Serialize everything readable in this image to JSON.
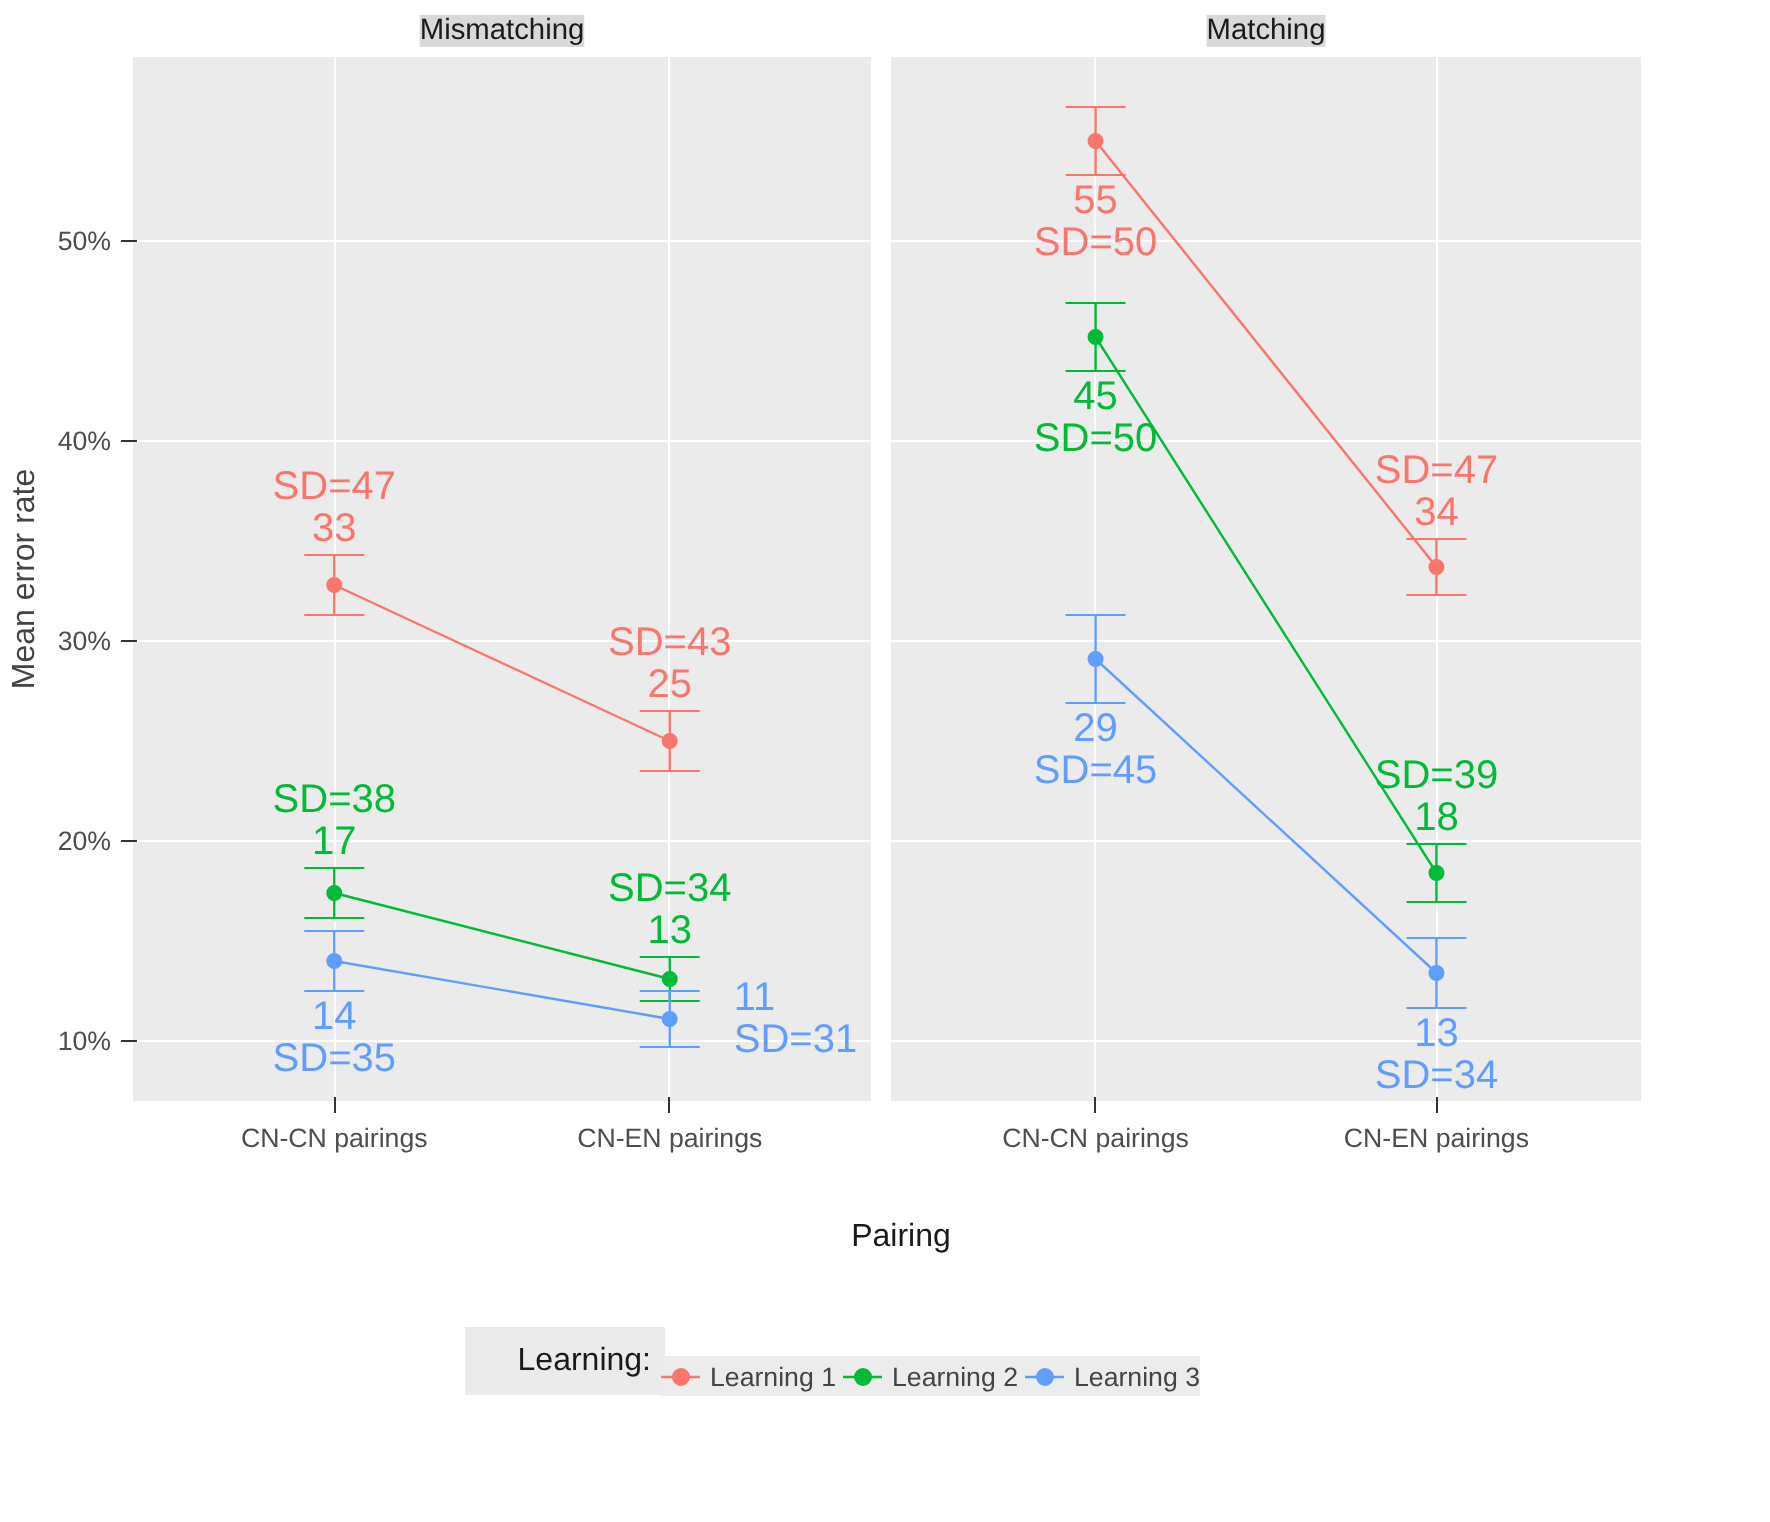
{
  "chart_data": [
    {
      "type": "line",
      "title": "Mismatching",
      "xlabel": "Pairing",
      "ylabel": "Mean error rate",
      "legend_title": "Learning:",
      "legend": "bottom",
      "marker": "circle",
      "grid": true,
      "categories": [
        "CN-CN pairings",
        "CN-EN pairings"
      ],
      "ylim": [
        7,
        59.2
      ],
      "yticks": [
        {
          "value": 10,
          "label": "10%"
        },
        {
          "value": 20,
          "label": "20%"
        },
        {
          "value": 30,
          "label": "30%"
        },
        {
          "value": 40,
          "label": "40%"
        },
        {
          "value": 50,
          "label": "50%"
        }
      ],
      "series": [
        {
          "name": "Learning 1",
          "color": "#f8766d",
          "values": [
            32.8,
            25.0
          ],
          "errors": [
            1.5,
            1.5
          ],
          "value_labels": [
            "SD=47\n33",
            "SD=43\n25"
          ]
        },
        {
          "name": "Learning 2",
          "color": "#00ba38",
          "values": [
            17.4,
            13.1
          ],
          "errors": [
            1.25,
            1.1
          ],
          "value_labels": [
            "SD=38\n17",
            "SD=34\n13"
          ]
        },
        {
          "name": "Learning 3",
          "color": "#619cff",
          "values": [
            14.0,
            11.1
          ],
          "errors": [
            1.5,
            1.4
          ],
          "value_labels": [
            "14\nSD=35",
            "11\nSD=31"
          ]
        }
      ]
    },
    {
      "type": "line",
      "title": "Matching",
      "marker": "circle",
      "grid": true,
      "tick_labels": "x",
      "categories": [
        "CN-CN pairings",
        "CN-EN pairings"
      ],
      "ylim": [
        7,
        59.2
      ],
      "yticks": [
        10,
        20,
        30,
        40,
        50
      ],
      "series": [
        {
          "color": "#f8766d",
          "values": [
            55.0,
            33.7
          ],
          "errors": [
            1.7,
            1.4
          ],
          "value_labels": [
            "55\nSD=50",
            "SD=47\n34"
          ]
        },
        {
          "color": "#00ba38",
          "values": [
            45.2,
            18.4
          ],
          "errors": [
            1.7,
            1.45
          ],
          "value_labels": [
            "45\nSD=50",
            "SD=39\n18"
          ]
        },
        {
          "color": "#619cff",
          "values": [
            29.1,
            13.4
          ],
          "errors": [
            2.2,
            1.75
          ],
          "value_labels": [
            "29\nSD=45",
            "13\nSD=34"
          ]
        }
      ]
    }
  ]
}
